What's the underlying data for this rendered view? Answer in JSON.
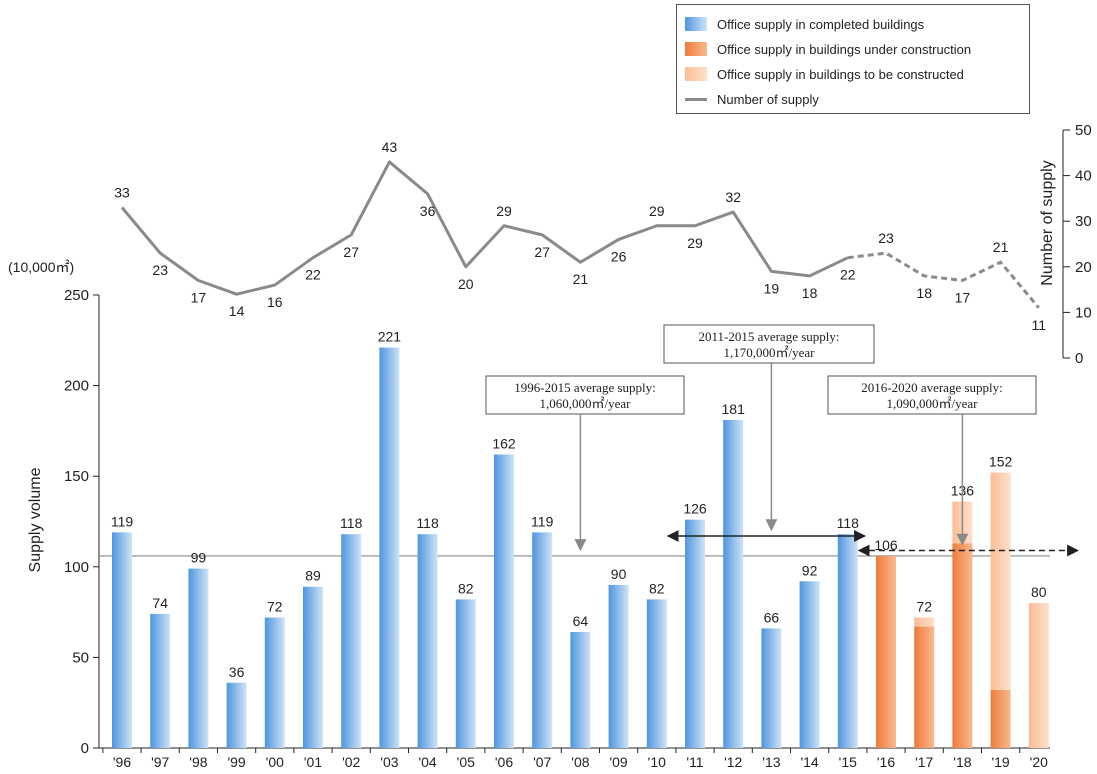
{
  "chart_data": {
    "type": "bar+line",
    "categories": [
      "'96",
      "'97",
      "'98",
      "'99",
      "'00",
      "'01",
      "'02",
      "'03",
      "'04",
      "'05",
      "'06",
      "'07",
      "'08",
      "'09",
      "'10",
      "'11",
      "'12",
      "'13",
      "'14",
      "'15",
      "'16",
      "'17",
      "'18",
      "'19",
      "'20"
    ],
    "series": [
      {
        "name": "Office supply in completed buildings",
        "values": [
          119,
          74,
          99,
          36,
          72,
          89,
          118,
          221,
          118,
          82,
          162,
          119,
          64,
          90,
          82,
          126,
          181,
          66,
          92,
          118,
          0,
          0,
          0,
          0,
          0
        ],
        "color": "#6aa9e6"
      },
      {
        "name": "Office supply in  buildings under construction",
        "values": [
          0,
          0,
          0,
          0,
          0,
          0,
          0,
          0,
          0,
          0,
          0,
          0,
          0,
          0,
          0,
          0,
          0,
          0,
          0,
          0,
          106,
          67,
          113,
          32,
          0
        ],
        "color": "#f08a4a"
      },
      {
        "name": "Office supply in  buildings to be constructed",
        "values": [
          0,
          0,
          0,
          0,
          0,
          0,
          0,
          0,
          0,
          0,
          0,
          0,
          0,
          0,
          0,
          0,
          0,
          0,
          0,
          0,
          0,
          5,
          23,
          120,
          80
        ],
        "color": "#fbc6a0"
      },
      {
        "name": "Number of supply",
        "values": [
          33,
          23,
          17,
          14,
          16,
          22,
          27,
          43,
          36,
          20,
          29,
          27,
          21,
          26,
          29,
          29,
          32,
          19,
          18,
          22,
          23,
          18,
          17,
          21,
          11
        ],
        "color": "#8a8a8a",
        "dashed_from_index": 19
      }
    ],
    "bar_totals": [
      119,
      74,
      99,
      36,
      72,
      89,
      118,
      221,
      118,
      82,
      162,
      119,
      64,
      90,
      82,
      126,
      181,
      66,
      92,
      118,
      106,
      72,
      136,
      152,
      80
    ],
    "y_left": {
      "unit_label": "(10,000㎡)",
      "label": "Supply volume",
      "ticks": [
        0,
        50,
        100,
        150,
        200,
        250
      ],
      "ylim": [
        0,
        250
      ]
    },
    "y_right": {
      "label": "Number of supply",
      "ticks": [
        0,
        10,
        20,
        30,
        40,
        50
      ],
      "ylim": [
        0,
        50
      ]
    },
    "reference_line": {
      "value": 106
    },
    "annotations": [
      {
        "line1": "1996-2015 average supply:",
        "line2": "1,060,000㎡/year",
        "target_index": 12,
        "target_value": 106
      },
      {
        "line1": "2011-2015 average supply:",
        "line2": "1,170,000㎡/year",
        "target_index": 17,
        "target_value": 117,
        "range_from": 15,
        "range_to": 19,
        "style": "solid"
      },
      {
        "line1": "2016-2020 average supply:",
        "line2": "1,090,000㎡/year",
        "target_index": 22,
        "target_value": 109,
        "range_from": 20,
        "range_to": 24,
        "style": "dashed"
      }
    ],
    "legend_position": "top-right"
  }
}
